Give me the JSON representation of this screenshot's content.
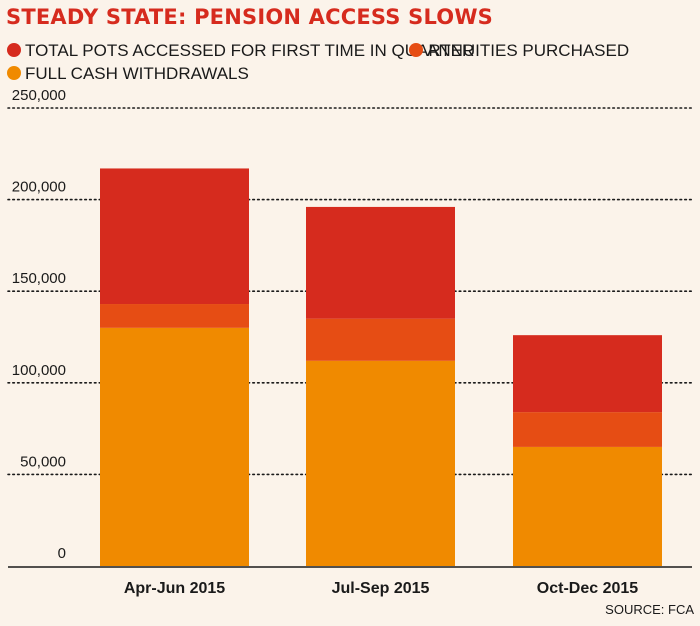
{
  "chart_data": {
    "type": "bar",
    "stacked": true,
    "title": "STEADY STATE: PENSION ACCESS SLOWS",
    "source": "SOURCE: FCA",
    "categories": [
      "Apr-Jun 2015",
      "Jul-Sep 2015",
      "Oct-Dec 2015"
    ],
    "ylim": [
      0,
      250000
    ],
    "yticks": [
      0,
      50000,
      100000,
      150000,
      200000,
      250000
    ],
    "ytick_labels": [
      "0",
      "50,000",
      "100,000",
      "150,000",
      "200,000",
      "250,000"
    ],
    "grid": true,
    "legend_position": "top-left",
    "series": [
      {
        "name": "FULL CASH WITHDRAWALS",
        "color": "#f08a00",
        "values": [
          130000,
          112000,
          65000
        ]
      },
      {
        "name": "ANNUITIES PURCHASED",
        "color": "#e64d14",
        "values": [
          13000,
          23000,
          19000
        ]
      },
      {
        "name": "TOTAL POTS ACCESSED FOR FIRST TIME IN QUARTER",
        "color": "#d62b1e",
        "values": [
          74000,
          61000,
          42000
        ]
      }
    ],
    "totals": [
      217000,
      196000,
      126000
    ]
  },
  "legend": {
    "items": [
      {
        "label": "TOTAL POTS ACCESSED FOR FIRST TIME IN QUARTER",
        "color": "#d62b1e"
      },
      {
        "label": "ANNUITIES PURCHASED",
        "color": "#e64d14"
      },
      {
        "label": "FULL CASH WITHDRAWALS",
        "color": "#f08a00"
      }
    ]
  },
  "colors": {
    "title": "#d62b1e",
    "background": "#fbf3ea",
    "axis": "#1a1a1a",
    "grid": "#1a1a1a"
  }
}
